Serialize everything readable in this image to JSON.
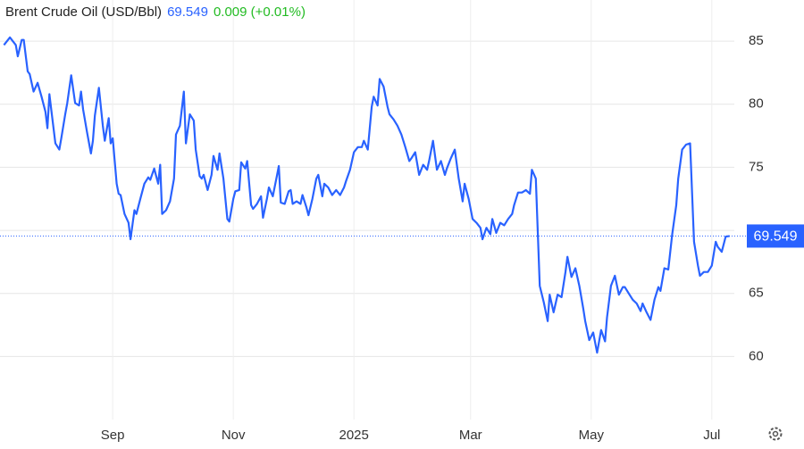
{
  "chart_data": {
    "type": "line",
    "title": "Brent Crude Oil (USD/Bbl)",
    "price": "69.549",
    "change": "0.009 (+0.01%)",
    "color": "#2962ff",
    "grid": true,
    "xlim": [
      -57,
      318
    ],
    "ylim": [
      55,
      86
    ],
    "yticks": [
      60,
      65,
      70,
      75,
      80,
      85
    ],
    "xticks": [
      {
        "value": 0,
        "label": "Sep"
      },
      {
        "value": 61,
        "label": "Nov"
      },
      {
        "value": 122,
        "label": "2025"
      },
      {
        "value": 181,
        "label": "Mar"
      },
      {
        "value": 242,
        "label": "May"
      },
      {
        "value": 303,
        "label": "Jul"
      }
    ],
    "x": [
      -55,
      -52,
      -49,
      -48,
      -46,
      -45,
      -43,
      -42,
      -40,
      -38,
      -36,
      -34,
      -33,
      -32,
      -31,
      -29,
      -27,
      -26,
      -24,
      -23,
      -21,
      -19,
      -17,
      -16,
      -15,
      -13,
      -11,
      -10,
      -9,
      -7,
      -5,
      -4,
      -2,
      -1,
      0,
      2,
      3,
      4,
      6,
      8,
      9,
      11,
      12,
      14,
      16,
      18,
      19,
      21,
      23,
      24,
      25,
      27,
      29,
      31,
      32,
      34,
      36,
      37,
      39,
      41,
      42,
      44,
      45,
      46,
      48,
      50,
      51,
      53,
      54,
      56,
      58,
      59,
      61,
      62,
      64,
      65,
      67,
      68,
      70,
      71,
      73,
      75,
      76,
      78,
      79,
      81,
      83,
      84,
      85,
      87,
      89,
      90,
      91,
      93,
      95,
      96,
      98,
      99,
      101,
      103,
      104,
      106,
      107,
      109,
      111,
      113,
      115,
      117,
      118,
      120,
      122,
      124,
      126,
      127,
      129,
      131,
      132,
      134,
      135,
      137,
      139,
      140,
      142,
      144,
      146,
      148,
      150,
      151,
      153,
      155,
      157,
      159,
      160,
      162,
      164,
      166,
      168,
      169,
      171,
      173,
      175,
      177,
      178,
      180,
      182,
      184,
      186,
      187,
      189,
      191,
      192,
      194,
      196,
      198,
      200,
      202,
      203,
      205,
      207,
      209,
      211,
      212,
      214,
      216,
      218,
      220,
      221,
      223,
      225,
      227,
      229,
      230,
      232,
      234,
      236,
      238,
      239,
      241,
      243,
      245,
      247,
      249,
      250,
      252,
      254,
      256,
      258,
      259,
      261,
      263,
      265,
      267,
      268,
      270,
      272,
      274,
      276,
      277,
      279,
      281,
      283,
      285,
      286,
      288,
      290,
      292,
      294,
      296,
      297,
      299,
      301,
      303,
      305,
      306,
      308,
      310,
      312
    ],
    "values": [
      84.7,
      85.3,
      84.7,
      83.8,
      85.1,
      85.1,
      82.6,
      82.4,
      81.0,
      81.7,
      80.6,
      79.4,
      78.1,
      80.8,
      79.5,
      76.9,
      76.4,
      77.3,
      79.2,
      80.1,
      82.3,
      80.1,
      79.9,
      81.0,
      79.6,
      77.8,
      76.1,
      77.1,
      79.1,
      81.3,
      78.3,
      77.1,
      78.9,
      76.9,
      77.3,
      73.7,
      72.9,
      72.8,
      71.3,
      70.6,
      69.3,
      71.6,
      71.3,
      72.5,
      73.7,
      74.2,
      74.0,
      74.9,
      73.7,
      75.2,
      71.3,
      71.6,
      72.3,
      74.1,
      77.6,
      78.3,
      81.0,
      76.9,
      79.2,
      78.7,
      76.4,
      74.3,
      74.1,
      74.4,
      73.2,
      74.4,
      75.9,
      74.8,
      76.1,
      74.1,
      70.9,
      70.7,
      72.5,
      73.1,
      73.2,
      75.4,
      74.9,
      75.5,
      72.0,
      71.7,
      72.1,
      72.7,
      71.0,
      72.5,
      73.4,
      72.7,
      74.3,
      75.1,
      72.2,
      72.1,
      73.1,
      73.2,
      72.1,
      72.3,
      72.1,
      72.8,
      71.8,
      71.2,
      72.5,
      74.1,
      74.4,
      72.7,
      73.7,
      73.4,
      72.8,
      73.2,
      72.8,
      73.4,
      73.9,
      74.8,
      76.2,
      76.6,
      76.6,
      77.1,
      76.4,
      79.8,
      80.6,
      79.9,
      82.0,
      81.4,
      79.8,
      79.2,
      78.8,
      78.3,
      77.6,
      76.6,
      75.5,
      75.7,
      76.2,
      74.4,
      75.2,
      74.8,
      75.5,
      77.1,
      74.8,
      75.5,
      74.4,
      74.9,
      75.7,
      76.4,
      74.1,
      72.3,
      73.7,
      72.5,
      70.9,
      70.6,
      70.2,
      69.3,
      70.2,
      69.7,
      70.9,
      69.8,
      70.6,
      70.4,
      70.9,
      71.3,
      72.0,
      73.0,
      73.0,
      73.2,
      72.9,
      74.8,
      74.1,
      65.6,
      64.3,
      62.8,
      64.9,
      63.5,
      64.9,
      64.7,
      66.7,
      67.9,
      66.3,
      67.0,
      65.6,
      63.8,
      62.8,
      61.3,
      61.9,
      60.3,
      62.1,
      61.2,
      63.1,
      65.6,
      66.4,
      64.9,
      65.5,
      65.5,
      65.0,
      64.5,
      64.2,
      63.6,
      64.2,
      63.5,
      62.9,
      64.5,
      65.5,
      65.2,
      67.0,
      66.9,
      69.7,
      72.0,
      74.1,
      76.4,
      76.8,
      76.9,
      69.1,
      67.2,
      66.4,
      66.7,
      66.7,
      67.2,
      69.1,
      68.7,
      68.3,
      69.5,
      69.549
    ]
  }
}
